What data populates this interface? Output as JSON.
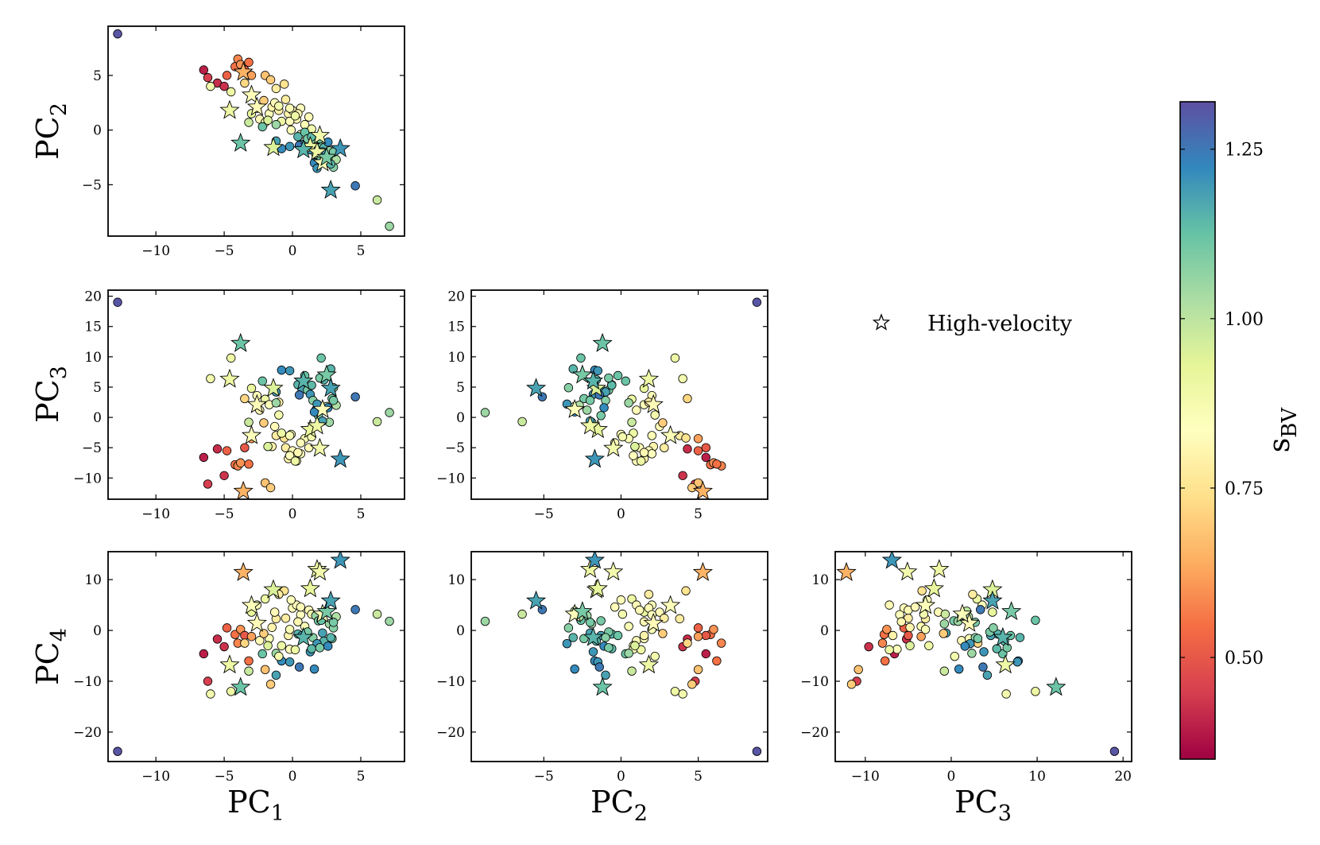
{
  "chart_data": {
    "type": "scatter",
    "layout": "corner-pairplot",
    "axis_names": [
      {
        "base": "PC",
        "sub": "1"
      },
      {
        "base": "PC",
        "sub": "2"
      },
      {
        "base": "PC",
        "sub": "3"
      },
      {
        "base": "PC",
        "sub": "4"
      }
    ],
    "axis_ranges": {
      "PC1": [
        -13.5,
        8.2
      ],
      "PC2": [
        -9.7,
        9.5
      ],
      "PC3": [
        -13.5,
        21.0
      ],
      "PC4": [
        -25.8,
        15.5
      ]
    },
    "axis_ticks": {
      "PC1": [
        -10,
        -5,
        0,
        5
      ],
      "PC2_x": [
        -5,
        0,
        5
      ],
      "PC3_x": [
        -10,
        0,
        10,
        20
      ],
      "PC2_y": [
        -5,
        0,
        5
      ],
      "PC3_y": [
        -10,
        -5,
        0,
        5,
        10,
        15,
        20
      ],
      "PC4_y": [
        -20,
        -10,
        0,
        10
      ]
    },
    "legend": {
      "marker": "star",
      "label": "High-velocity",
      "location": "upper-right"
    },
    "colorbar": {
      "label_base": "s",
      "label_sub": "BV",
      "range": [
        0.35,
        1.32
      ],
      "ticks": [
        0.5,
        0.75,
        1.0,
        1.25
      ],
      "tick_labels": [
        "0.50",
        "0.75",
        "1.00",
        "1.25"
      ],
      "colormap": "Spectral",
      "stops": [
        "#9e0142",
        "#d53e4f",
        "#f46d43",
        "#fdae61",
        "#fee08b",
        "#ffffbf",
        "#e6f598",
        "#abdda4",
        "#66c2a5",
        "#3288bd",
        "#5e4fa2"
      ]
    },
    "points": [
      {
        "pc": [
          -12.8,
          8.8,
          19.0,
          -23.8
        ],
        "s": 1.31,
        "hv": false
      },
      {
        "pc": [
          -6.5,
          5.5,
          -6.6,
          -4.6
        ],
        "s": 0.4,
        "hv": false
      },
      {
        "pc": [
          -6.2,
          4.8,
          -11.0,
          -10.0
        ],
        "s": 0.45,
        "hv": false
      },
      {
        "pc": [
          -5.5,
          4.3,
          -5.2,
          -1.7
        ],
        "s": 0.42,
        "hv": false
      },
      {
        "pc": [
          -5.0,
          4.0,
          -9.6,
          -3.2
        ],
        "s": 0.43,
        "hv": false
      },
      {
        "pc": [
          -4.8,
          5.0,
          -5.5,
          0.5
        ],
        "s": 0.52,
        "hv": false
      },
      {
        "pc": [
          -4.2,
          5.8,
          -7.8,
          -0.8
        ],
        "s": 0.55,
        "hv": false
      },
      {
        "pc": [
          -4.0,
          6.5,
          -8.0,
          -2.5
        ],
        "s": 0.58,
        "hv": false
      },
      {
        "pc": [
          -3.8,
          6.0,
          -7.5,
          0.2
        ],
        "s": 0.6,
        "hv": false
      },
      {
        "pc": [
          -3.5,
          5.5,
          -5.0,
          -1.0
        ],
        "s": 0.5,
        "hv": false
      },
      {
        "pc": [
          -3.2,
          6.2,
          -7.7,
          -6.0
        ],
        "s": 0.55,
        "hv": false
      },
      {
        "pc": [
          -3.0,
          5.0,
          -3.5,
          -1.2
        ],
        "s": 0.62,
        "hv": false
      },
      {
        "pc": [
          -6.0,
          4.0,
          6.4,
          -12.5
        ],
        "s": 0.88,
        "hv": false
      },
      {
        "pc": [
          -4.5,
          3.5,
          9.8,
          -12.0
        ],
        "s": 0.9,
        "hv": false
      },
      {
        "pc": [
          -3.5,
          4.3,
          3.1,
          -2.5
        ],
        "s": 0.72,
        "hv": false
      },
      {
        "pc": [
          -2.0,
          5.0,
          -10.8,
          -7.7
        ],
        "s": 0.68,
        "hv": false
      },
      {
        "pc": [
          -1.6,
          4.6,
          -11.6,
          -10.6
        ],
        "s": 0.7,
        "hv": false
      },
      {
        "pc": [
          -1.2,
          3.8,
          -3.0,
          2.3
        ],
        "s": 0.78,
        "hv": false
      },
      {
        "pc": [
          -0.6,
          4.2,
          -3.4,
          7.8
        ],
        "s": 0.75,
        "hv": false
      },
      {
        "pc": [
          -3.0,
          1.5,
          4.8,
          3.6
        ],
        "s": 0.92,
        "hv": false
      },
      {
        "pc": [
          -2.6,
          2.0,
          3.6,
          5.0
        ],
        "s": 0.85,
        "hv": false
      },
      {
        "pc": [
          -2.4,
          1.0,
          1.2,
          -2.0
        ],
        "s": 0.82,
        "hv": false
      },
      {
        "pc": [
          -2.0,
          0.7,
          3.0,
          6.2
        ],
        "s": 0.9,
        "hv": false
      },
      {
        "pc": [
          -1.7,
          1.5,
          2.1,
          -1.6
        ],
        "s": 0.85,
        "hv": false
      },
      {
        "pc": [
          -1.5,
          2.1,
          -4.8,
          0.6
        ],
        "s": 0.8,
        "hv": false
      },
      {
        "pc": [
          -1.3,
          2.5,
          -1.5,
          3.6
        ],
        "s": 0.82,
        "hv": false
      },
      {
        "pc": [
          -1.0,
          1.8,
          2.5,
          7.1
        ],
        "s": 0.78,
        "hv": false
      },
      {
        "pc": [
          -0.8,
          0.8,
          -2.6,
          -3.0
        ],
        "s": 0.9,
        "hv": false
      },
      {
        "pc": [
          -0.5,
          2.8,
          -5.0,
          2.4
        ],
        "s": 0.78,
        "hv": false
      },
      {
        "pc": [
          -0.3,
          1.5,
          -6.8,
          -1.0
        ],
        "s": 0.8,
        "hv": false
      },
      {
        "pc": [
          0.0,
          1.8,
          -5.5,
          4.4
        ],
        "s": 0.82,
        "hv": false
      },
      {
        "pc": [
          0.3,
          1.0,
          -7.2,
          5.0
        ],
        "s": 0.82,
        "hv": false
      },
      {
        "pc": [
          0.6,
          2.0,
          -6.0,
          3.1
        ],
        "s": 0.84,
        "hv": false
      },
      {
        "pc": [
          0.9,
          0.5,
          -3.5,
          0.8
        ],
        "s": 0.86,
        "hv": false
      },
      {
        "pc": [
          1.2,
          1.2,
          -5.0,
          4.0
        ],
        "s": 0.82,
        "hv": false
      },
      {
        "pc": [
          -0.1,
          0.0,
          -2.8,
          6.0
        ],
        "s": 0.85,
        "hv": false
      },
      {
        "pc": [
          0.6,
          -0.4,
          -4.2,
          4.6
        ],
        "s": 0.82,
        "hv": false
      },
      {
        "pc": [
          -0.2,
          0.8,
          -6.3,
          -3.7
        ],
        "s": 0.83,
        "hv": false
      },
      {
        "pc": [
          0.4,
          1.5,
          -5.8,
          1.7
        ],
        "s": 0.81,
        "hv": false
      },
      {
        "pc": [
          1.4,
          0.1,
          -3.2,
          3.2
        ],
        "s": 0.88,
        "hv": false
      },
      {
        "pc": [
          -2.2,
          0.3,
          6.0,
          -4.6
        ],
        "s": 1.12,
        "hv": false
      },
      {
        "pc": [
          -1.2,
          0.5,
          2.4,
          -4.5
        ],
        "s": 1.05,
        "hv": false
      },
      {
        "pc": [
          -0.8,
          -1.7,
          7.8,
          -6.0
        ],
        "s": 1.22,
        "hv": false
      },
      {
        "pc": [
          -0.2,
          -1.5,
          7.7,
          -6.2
        ],
        "s": 1.2,
        "hv": false
      },
      {
        "pc": [
          0.4,
          -0.6,
          5.4,
          -0.7
        ],
        "s": 1.15,
        "hv": false
      },
      {
        "pc": [
          0.7,
          -1.3,
          4.6,
          -1.0
        ],
        "s": 1.18,
        "hv": false
      },
      {
        "pc": [
          0.9,
          -0.2,
          6.9,
          -1.0
        ],
        "s": 1.12,
        "hv": false
      },
      {
        "pc": [
          1.1,
          -0.8,
          4.5,
          -0.3
        ],
        "s": 1.1,
        "hv": false
      },
      {
        "pc": [
          1.3,
          -1.8,
          3.8,
          -4.2
        ],
        "s": 1.2,
        "hv": false
      },
      {
        "pc": [
          1.5,
          -1.0,
          2.8,
          -1.4
        ],
        "s": 1.08,
        "hv": false
      },
      {
        "pc": [
          1.7,
          -2.2,
          1.2,
          2.9
        ],
        "s": 1.05,
        "hv": false
      },
      {
        "pc": [
          1.9,
          -1.3,
          0.3,
          1.9
        ],
        "s": 1.1,
        "hv": false
      },
      {
        "pc": [
          2.1,
          -2.6,
          9.8,
          2.0
        ],
        "s": 1.12,
        "hv": false
      },
      {
        "pc": [
          2.3,
          -1.6,
          6.2,
          -2.1
        ],
        "s": 1.15,
        "hv": false
      },
      {
        "pc": [
          2.5,
          -3.0,
          1.8,
          3.8
        ],
        "s": 1.0,
        "hv": false
      },
      {
        "pc": [
          2.7,
          -1.9,
          -0.8,
          1.3
        ],
        "s": 1.05,
        "hv": false
      },
      {
        "pc": [
          2.9,
          -2.4,
          3.1,
          -1.6
        ],
        "s": 1.1,
        "hv": false
      },
      {
        "pc": [
          3.0,
          -3.4,
          4.9,
          0.5
        ],
        "s": 1.08,
        "hv": false
      },
      {
        "pc": [
          3.2,
          -2.7,
          2.0,
          2.7
        ],
        "s": 1.02,
        "hv": false
      },
      {
        "pc": [
          1.6,
          -3.0,
          0.9,
          -7.6
        ],
        "s": 1.22,
        "hv": false
      },
      {
        "pc": [
          1.8,
          -3.5,
          2.2,
          -2.6
        ],
        "s": 1.2,
        "hv": false
      },
      {
        "pc": [
          2.2,
          -2.0,
          -0.6,
          -0.5
        ],
        "s": 1.18,
        "hv": false
      },
      {
        "pc": [
          2.6,
          -1.1,
          1.6,
          -3.1
        ],
        "s": 1.22,
        "hv": false
      },
      {
        "pc": [
          3.0,
          -2.0,
          2.8,
          1.6
        ],
        "s": 1.1,
        "hv": false
      },
      {
        "pc": [
          1.4,
          -0.6,
          5.3,
          -3.6
        ],
        "s": 1.14,
        "hv": false
      },
      {
        "pc": [
          -2.1,
          2.7,
          -0.9,
          -0.6
        ],
        "s": 0.7,
        "hv": false
      },
      {
        "pc": [
          -1.0,
          2.2,
          0.4,
          -5.1
        ],
        "s": 0.88,
        "hv": false
      },
      {
        "pc": [
          -0.2,
          2.0,
          -3.0,
          0.2
        ],
        "s": 0.86,
        "hv": false
      },
      {
        "pc": [
          0.2,
          1.3,
          -7.2,
          -3.8
        ],
        "s": 0.9,
        "hv": false
      },
      {
        "pc": [
          -3.2,
          0.7,
          -0.8,
          -8.0
        ],
        "s": 0.98,
        "hv": false
      },
      {
        "pc": [
          -1.8,
          0.9,
          -4.8,
          -3.0
        ],
        "s": 0.95,
        "hv": false
      },
      {
        "pc": [
          4.6,
          -5.1,
          3.4,
          4.1
        ],
        "s": 1.25,
        "hv": false
      },
      {
        "pc": [
          6.2,
          -6.4,
          -0.7,
          3.2
        ],
        "s": 0.98,
        "hv": false
      },
      {
        "pc": [
          7.1,
          -8.8,
          0.8,
          1.8
        ],
        "s": 1.05,
        "hv": false
      },
      {
        "pc": [
          -1.2,
          -1.0,
          4.2,
          -8.8
        ],
        "s": 1.18,
        "hv": false
      },
      {
        "pc": [
          0.5,
          -1.4,
          3.7,
          -7.2
        ],
        "s": 1.25,
        "hv": false
      },
      {
        "pc": [
          2.0,
          -0.8,
          6.5,
          -3.4
        ],
        "s": 1.1,
        "hv": false
      },
      {
        "pc": [
          2.8,
          -3.1,
          8.0,
          -1.4
        ],
        "s": 1.15,
        "hv": false
      },
      {
        "pc": [
          -3.6,
          5.3,
          -12.2,
          11.4
        ],
        "s": 0.65,
        "hv": true
      },
      {
        "pc": [
          -3.8,
          -1.2,
          12.2,
          -11.2
        ],
        "s": 1.12,
        "hv": true
      },
      {
        "pc": [
          -4.6,
          1.8,
          6.3,
          -6.8
        ],
        "s": 0.9,
        "hv": true
      },
      {
        "pc": [
          -3.0,
          3.2,
          -3.0,
          4.9
        ],
        "s": 0.85,
        "hv": true
      },
      {
        "pc": [
          -2.6,
          2.1,
          2.1,
          1.4
        ],
        "s": 0.82,
        "hv": true
      },
      {
        "pc": [
          -1.4,
          -1.6,
          4.8,
          8.0
        ],
        "s": 0.95,
        "hv": true
      },
      {
        "pc": [
          1.3,
          -1.5,
          -2.0,
          8.2
        ],
        "s": 0.92,
        "hv": true
      },
      {
        "pc": [
          1.8,
          -2.0,
          -1.4,
          12.0
        ],
        "s": 0.9,
        "hv": true
      },
      {
        "pc": [
          2.0,
          -0.5,
          -5.1,
          11.5
        ],
        "s": 0.88,
        "hv": true
      },
      {
        "pc": [
          2.2,
          -3.0,
          1.3,
          3.2
        ],
        "s": 0.85,
        "hv": true
      },
      {
        "pc": [
          2.5,
          -2.5,
          7.0,
          3.7
        ],
        "s": 1.1,
        "hv": true
      },
      {
        "pc": [
          2.8,
          -5.5,
          4.8,
          5.8
        ],
        "s": 1.18,
        "hv": true
      },
      {
        "pc": [
          3.5,
          -1.7,
          -6.9,
          13.8
        ],
        "s": 1.2,
        "hv": true
      },
      {
        "pc": [
          0.8,
          -1.8,
          6.0,
          -1.4
        ],
        "s": 1.15,
        "hv": true
      }
    ]
  }
}
